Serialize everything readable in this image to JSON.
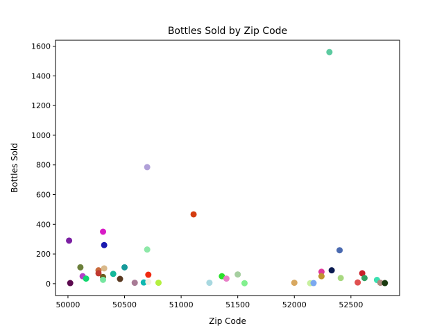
{
  "chart_data": {
    "type": "scatter",
    "title": "Bottles Sold by Zip Code",
    "xlabel": "Zip Code",
    "ylabel": "Bottles Sold",
    "xlim": [
      49890,
      52930
    ],
    "ylim": [
      -80,
      1640
    ],
    "xticks": [
      50000,
      50500,
      51000,
      51500,
      52000,
      52500
    ],
    "yticks": [
      0,
      200,
      400,
      600,
      800,
      1000,
      1200,
      1400,
      1600
    ],
    "grid": false,
    "points": [
      {
        "x": 50010,
        "y": 290,
        "color": "#7b1fa2"
      },
      {
        "x": 50020,
        "y": 4,
        "color": "#5c0a4f"
      },
      {
        "x": 50110,
        "y": 110,
        "color": "#6b7f3a"
      },
      {
        "x": 50130,
        "y": 50,
        "color": "#b33fc8"
      },
      {
        "x": 50160,
        "y": 34,
        "color": "#12d66f"
      },
      {
        "x": 50270,
        "y": 90,
        "color": "#c96a3c"
      },
      {
        "x": 50270,
        "y": 70,
        "color": "#c03a30"
      },
      {
        "x": 50310,
        "y": 350,
        "color": "#d81bc6"
      },
      {
        "x": 50320,
        "y": 260,
        "color": "#1a1ab0"
      },
      {
        "x": 50320,
        "y": 103,
        "color": "#d9b98a"
      },
      {
        "x": 50310,
        "y": 45,
        "color": "#6d5a1e"
      },
      {
        "x": 50310,
        "y": 26,
        "color": "#76e6a0"
      },
      {
        "x": 50400,
        "y": 66,
        "color": "#14b89a"
      },
      {
        "x": 50460,
        "y": 32,
        "color": "#5a3a22"
      },
      {
        "x": 50500,
        "y": 110,
        "color": "#169a9a"
      },
      {
        "x": 50590,
        "y": 6,
        "color": "#a87a95"
      },
      {
        "x": 50670,
        "y": 8,
        "color": "#0fb8b0"
      },
      {
        "x": 50700,
        "y": 785,
        "color": "#b0a0d8"
      },
      {
        "x": 50700,
        "y": 230,
        "color": "#8ee8a8"
      },
      {
        "x": 50710,
        "y": 60,
        "color": "#f02a10"
      },
      {
        "x": 50710,
        "y": 12,
        "color": "#f5f0e4"
      },
      {
        "x": 50800,
        "y": 6,
        "color": "#b4f040"
      },
      {
        "x": 51110,
        "y": 467,
        "color": "#d43c10"
      },
      {
        "x": 51250,
        "y": 6,
        "color": "#a8d8e0"
      },
      {
        "x": 51360,
        "y": 50,
        "color": "#2ae02a"
      },
      {
        "x": 51400,
        "y": 34,
        "color": "#e880c8"
      },
      {
        "x": 51500,
        "y": 62,
        "color": "#a6cfa0"
      },
      {
        "x": 51560,
        "y": 3,
        "color": "#82f08e"
      },
      {
        "x": 52000,
        "y": 6,
        "color": "#d8a860"
      },
      {
        "x": 52140,
        "y": 3,
        "color": "#c8f0a0"
      },
      {
        "x": 52170,
        "y": 4,
        "color": "#7aa8f0"
      },
      {
        "x": 52240,
        "y": 80,
        "color": "#e0389a"
      },
      {
        "x": 52240,
        "y": 50,
        "color": "#c09430"
      },
      {
        "x": 52310,
        "y": 1560,
        "color": "#5ccaa0"
      },
      {
        "x": 52330,
        "y": 90,
        "color": "#0a1a50"
      },
      {
        "x": 52400,
        "y": 225,
        "color": "#4a6ab0"
      },
      {
        "x": 52410,
        "y": 38,
        "color": "#a8d880"
      },
      {
        "x": 52560,
        "y": 8,
        "color": "#e05050"
      },
      {
        "x": 52600,
        "y": 70,
        "color": "#c8202a"
      },
      {
        "x": 52620,
        "y": 38,
        "color": "#30a060"
      },
      {
        "x": 52730,
        "y": 25,
        "color": "#3ae0b0"
      },
      {
        "x": 52760,
        "y": 6,
        "color": "#b08a80"
      },
      {
        "x": 52800,
        "y": 4,
        "color": "#1a3a10"
      }
    ]
  }
}
